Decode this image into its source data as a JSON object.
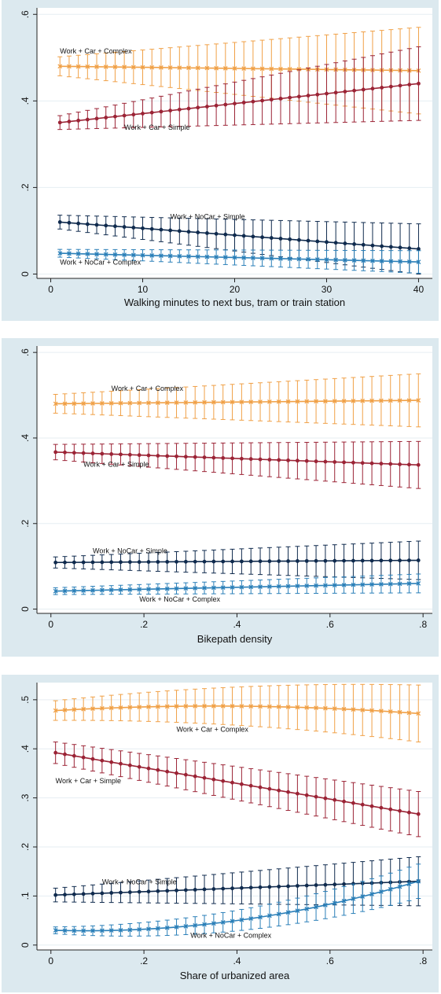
{
  "chart_data": [
    {
      "type": "line",
      "xlabel": "Walking minutes to next bus, tram or train station",
      "ylabel": "",
      "x_ticks": [
        "0",
        "10",
        "20",
        "30",
        "40"
      ],
      "y_ticks": [
        "0",
        ".2",
        ".4",
        ".6"
      ],
      "xlim": [
        -1.5,
        41.5
      ],
      "ylim": [
        -0.01,
        0.615
      ],
      "grid": true,
      "x_start": 1,
      "x_end": 40,
      "n_points": 40,
      "series": [
        {
          "name": "Work + Car + Complex",
          "color": "#f0a046",
          "marker": "x",
          "values_start": 0.48,
          "values_end": 0.47,
          "ci_start": 0.022,
          "ci_end": 0.1,
          "label": {
            "text": "Work + Car + Complex",
            "at": [
              1,
              0.51
            ]
          }
        },
        {
          "name": "Work + Car + Simple",
          "color": "#9b2335",
          "marker": "dot",
          "values_start": 0.35,
          "values_end": 0.44,
          "ci_start": 0.016,
          "ci_end": 0.085,
          "label": {
            "text": "Work + Car + Simple",
            "at": [
              8,
              0.333
            ]
          }
        },
        {
          "name": "Work + NoCar + Simple",
          "color": "#0f2a4d",
          "marker": "dot",
          "values_start": 0.12,
          "values_end": 0.058,
          "ci_start": 0.016,
          "ci_end": 0.058,
          "label": {
            "text": "Work + NoCar + Simple",
            "at": [
              13,
              0.127
            ]
          }
        },
        {
          "name": "Work + NoCar + Complex",
          "color": "#2a7fb8",
          "marker": "x",
          "values_start": 0.048,
          "values_end": 0.028,
          "ci_start": 0.009,
          "ci_end": 0.026,
          "label": {
            "text": "Work + NoCar + Complex",
            "at": [
              1,
              0.022
            ]
          }
        }
      ]
    },
    {
      "type": "line",
      "xlabel": "Bikepath density",
      "ylabel": "",
      "x_ticks": [
        "0",
        ".2",
        ".4",
        ".6",
        ".8"
      ],
      "y_ticks": [
        "0",
        ".2",
        ".4",
        ".6"
      ],
      "xlim": [
        -0.03,
        0.82
      ],
      "ylim": [
        -0.01,
        0.615
      ],
      "grid": true,
      "x_start": 0.01,
      "x_end": 0.79,
      "n_points": 40,
      "series": [
        {
          "name": "Work + Car + Complex",
          "color": "#f0a046",
          "marker": "x",
          "values_start": 0.48,
          "values_end": 0.488,
          "ci_start": 0.022,
          "ci_end": 0.062,
          "label": {
            "text": "Work + Car + Complex",
            "at": [
              0.13,
              0.51
            ]
          }
        },
        {
          "name": "Work + Car + Simple",
          "color": "#9b2335",
          "marker": "dot",
          "values_start": 0.367,
          "values_end": 0.337,
          "ci_start": 0.018,
          "ci_end": 0.055,
          "label": {
            "text": "Work + Car + Simple",
            "at": [
              0.07,
              0.333
            ]
          }
        },
        {
          "name": "Work + NoCar + Simple",
          "color": "#0f2a4d",
          "marker": "dot",
          "values_start": 0.109,
          "values_end": 0.114,
          "ci_start": 0.013,
          "ci_end": 0.045,
          "label": {
            "text": "Work + NoCar + Simple",
            "at": [
              0.09,
              0.131
            ]
          }
        },
        {
          "name": "Work + NoCar + Complex",
          "color": "#2a7fb8",
          "marker": "x",
          "values_start": 0.042,
          "values_end": 0.06,
          "ci_start": 0.008,
          "ci_end": 0.022,
          "label": {
            "text": "Work + NoCar + Complex",
            "at": [
              0.19,
              0.018
            ]
          }
        }
      ]
    },
    {
      "type": "line",
      "xlabel": "Share of urbanized area",
      "ylabel": "",
      "x_ticks": [
        "0",
        ".2",
        ".4",
        ".6",
        ".8"
      ],
      "y_ticks": [
        "0",
        ".1",
        ".2",
        ".3",
        ".4",
        ".5"
      ],
      "xlim": [
        -0.03,
        0.82
      ],
      "ylim": [
        -0.01,
        0.535
      ],
      "grid": true,
      "x_start": 0.01,
      "x_end": 0.79,
      "n_points": 40,
      "series": [
        {
          "name": "Work + Car + Complex",
          "color": "#f0a046",
          "marker": "x",
          "values_start": 0.478,
          "values_end": 0.472,
          "ci_start": 0.02,
          "ci_end": 0.058,
          "curve": 0.012,
          "label": {
            "text": "Work + Car + Complex",
            "at": [
              0.27,
              0.435
            ]
          }
        },
        {
          "name": "Work + Car + Simple",
          "color": "#9b2335",
          "marker": "dot",
          "values_start": 0.392,
          "values_end": 0.267,
          "ci_start": 0.022,
          "ci_end": 0.046,
          "label": {
            "text": "Work + Car + Simple",
            "at": [
              0.01,
              0.33
            ]
          }
        },
        {
          "name": "Work + NoCar + Simple",
          "color": "#0f2a4d",
          "marker": "dot",
          "values_start": 0.102,
          "values_end": 0.13,
          "ci_start": 0.014,
          "ci_end": 0.05,
          "label": {
            "text": "Work + NoCar + Simple",
            "at": [
              0.11,
              0.124
            ]
          }
        },
        {
          "name": "Work + NoCar + Complex",
          "color": "#2a7fb8",
          "marker": "x",
          "values_start": 0.03,
          "values_end": 0.13,
          "ci_start": 0.007,
          "ci_end": 0.035,
          "convex": 0.03,
          "label": {
            "text": "Work + NoCar + Complex",
            "at": [
              0.3,
              0.015
            ]
          }
        }
      ]
    }
  ]
}
